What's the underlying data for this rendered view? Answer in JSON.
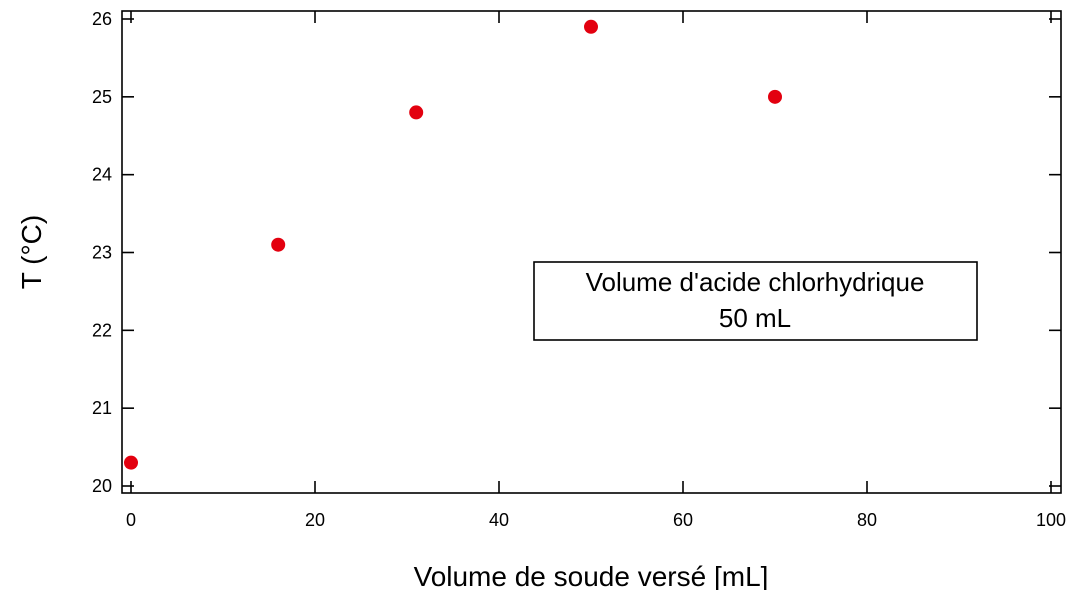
{
  "chart_data": {
    "type": "scatter",
    "title": "",
    "xlabel": "Volume de soude versé [mL]",
    "ylabel": "T (°C)",
    "xlim": [
      0,
      100
    ],
    "ylim": [
      20,
      26
    ],
    "xticks": [
      0,
      20,
      40,
      60,
      80,
      100
    ],
    "yticks": [
      20,
      21,
      22,
      23,
      24,
      25,
      26
    ],
    "grid": false,
    "series": [
      {
        "x": [
          0,
          16,
          31,
          50,
          70
        ],
        "y": [
          20.3,
          23.1,
          24.8,
          25.9,
          25.0
        ],
        "color": "#e3000f"
      }
    ],
    "annotation": {
      "lines": [
        "Volume d'acide chlorhydrique",
        "50 mL"
      ],
      "placement": "center-right"
    }
  }
}
